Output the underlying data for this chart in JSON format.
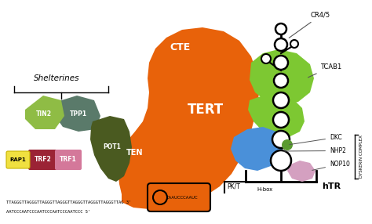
{
  "bg_color": "#ffffff",
  "tert_color": "#e8620a",
  "tert_label": "TERT",
  "cte_label": "CTE",
  "ten_label": "TEN",
  "tcab1_color": "#7dc832",
  "tcab1_label": "TCAB1",
  "cr45_label": "CR4/5",
  "dkc_label": "DKC",
  "nhp2_label": "NHP2",
  "nop10_label": "NOP10",
  "hbox_label": "H-box",
  "htr_label": "hTR",
  "pkt_label": "PK/T",
  "nhp2_color": "#4a90d9",
  "nop10_color": "#d4a0c0",
  "dkc_color": "#5a9a30",
  "tin2_color": "#8fbc45",
  "tpp1_color": "#5a7a6a",
  "pot1_color": "#4a5a20",
  "trf2_color": "#9b2335",
  "trf1_color": "#d4789a",
  "rap1_color": "#f0e040",
  "caau_label": "CAAUCCCAAUC",
  "seq1": "TTAGGGTTAGGGTTAGGGTTAGGGTTAGGGTTAGGGTTAGGGTTAG 3'",
  "seq2": "AATCCCAATCCCAATCCCAATCCCAATCCC 5'",
  "dyskerin_label": "DYSKERIN COMPLEX",
  "tin2_label": "TIN2",
  "tpp1_label": "TPP1",
  "pot1_label": "POT1",
  "trf2_label": "TRF2",
  "trf1_label": "TRF1",
  "rap1_label": "RAP1",
  "shelterines_label": "Shelterines"
}
